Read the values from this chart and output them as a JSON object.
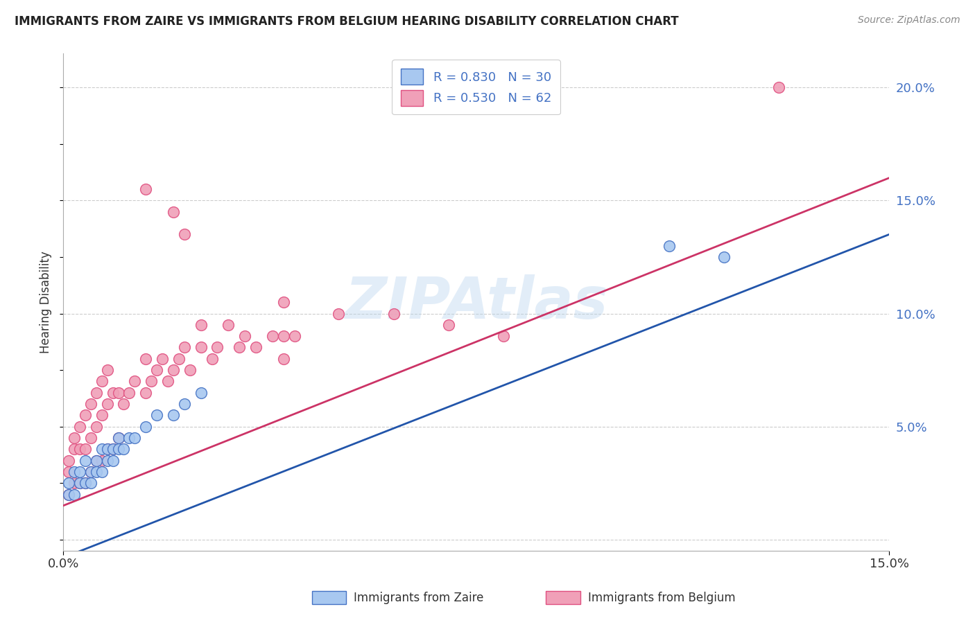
{
  "title": "IMMIGRANTS FROM ZAIRE VS IMMIGRANTS FROM BELGIUM HEARING DISABILITY CORRELATION CHART",
  "source": "Source: ZipAtlas.com",
  "ylabel": "Hearing Disability",
  "xlim": [
    0.0,
    0.15
  ],
  "ylim": [
    -0.005,
    0.215
  ],
  "xtick_positions": [
    0.0,
    0.15
  ],
  "xtick_labels": [
    "0.0%",
    "15.0%"
  ],
  "yticks_right": [
    0.0,
    0.05,
    0.1,
    0.15,
    0.2
  ],
  "ytick_labels_right": [
    "",
    "5.0%",
    "10.0%",
    "15.0%",
    "20.0%"
  ],
  "zaire_color": "#a8c8f0",
  "belgium_color": "#f0a0b8",
  "zaire_edge_color": "#4472c4",
  "belgium_edge_color": "#e05080",
  "zaire_line_color": "#2255aa",
  "belgium_line_color": "#cc3366",
  "R_zaire": 0.83,
  "N_zaire": 30,
  "R_belgium": 0.53,
  "N_belgium": 62,
  "watermark": "ZIPAtlas",
  "background_color": "#ffffff",
  "grid_color": "#cccccc",
  "zaire_line_intercept": -0.008,
  "zaire_line_slope": 1.0,
  "belgium_line_intercept": 0.015,
  "belgium_line_slope": 1.0,
  "zaire_x": [
    0.001,
    0.001,
    0.002,
    0.002,
    0.003,
    0.003,
    0.004,
    0.004,
    0.005,
    0.005,
    0.006,
    0.006,
    0.007,
    0.007,
    0.008,
    0.008,
    0.009,
    0.009,
    0.01,
    0.01,
    0.011,
    0.012,
    0.013,
    0.015,
    0.017,
    0.02,
    0.022,
    0.025,
    0.11,
    0.12
  ],
  "zaire_y": [
    0.02,
    0.025,
    0.02,
    0.03,
    0.025,
    0.03,
    0.025,
    0.035,
    0.025,
    0.03,
    0.03,
    0.035,
    0.03,
    0.04,
    0.035,
    0.04,
    0.035,
    0.04,
    0.04,
    0.045,
    0.04,
    0.045,
    0.045,
    0.05,
    0.055,
    0.055,
    0.06,
    0.065,
    0.13,
    0.125
  ],
  "belgium_x": [
    0.001,
    0.001,
    0.001,
    0.002,
    0.002,
    0.002,
    0.003,
    0.003,
    0.003,
    0.004,
    0.004,
    0.004,
    0.005,
    0.005,
    0.005,
    0.006,
    0.006,
    0.006,
    0.007,
    0.007,
    0.007,
    0.008,
    0.008,
    0.008,
    0.009,
    0.009,
    0.01,
    0.01,
    0.011,
    0.012,
    0.013,
    0.015,
    0.015,
    0.016,
    0.017,
    0.018,
    0.019,
    0.02,
    0.021,
    0.022,
    0.023,
    0.025,
    0.025,
    0.027,
    0.028,
    0.03,
    0.032,
    0.033,
    0.035,
    0.038,
    0.04,
    0.04,
    0.042,
    0.04,
    0.015,
    0.02,
    0.022,
    0.05,
    0.06,
    0.07,
    0.08,
    0.13
  ],
  "belgium_y": [
    0.02,
    0.03,
    0.035,
    0.025,
    0.04,
    0.045,
    0.025,
    0.04,
    0.05,
    0.025,
    0.04,
    0.055,
    0.03,
    0.045,
    0.06,
    0.035,
    0.05,
    0.065,
    0.035,
    0.055,
    0.07,
    0.04,
    0.06,
    0.075,
    0.04,
    0.065,
    0.045,
    0.065,
    0.06,
    0.065,
    0.07,
    0.065,
    0.08,
    0.07,
    0.075,
    0.08,
    0.07,
    0.075,
    0.08,
    0.085,
    0.075,
    0.085,
    0.095,
    0.08,
    0.085,
    0.095,
    0.085,
    0.09,
    0.085,
    0.09,
    0.09,
    0.08,
    0.09,
    0.105,
    0.155,
    0.145,
    0.135,
    0.1,
    0.1,
    0.095,
    0.09,
    0.2
  ]
}
